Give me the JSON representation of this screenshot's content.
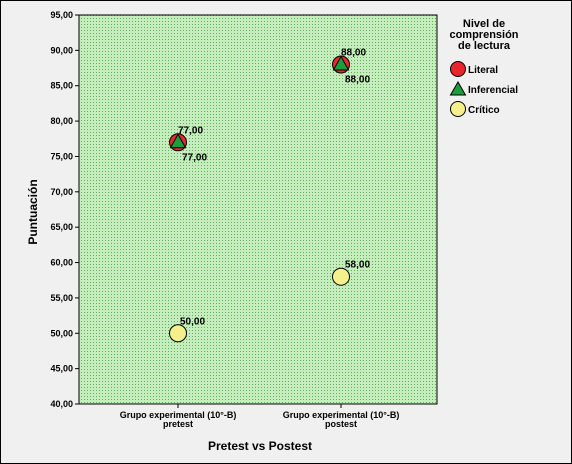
{
  "chart_data": {
    "type": "scatter",
    "xlabel": "Pretest vs Postest",
    "ylabel": "Puntuación",
    "ylim": [
      40,
      95
    ],
    "y_ticks": [
      "40,00",
      "45,00",
      "50,00",
      "55,00",
      "60,00",
      "65,00",
      "70,00",
      "75,00",
      "80,00",
      "85,00",
      "90,00",
      "95,00"
    ],
    "y_tick_values": [
      40,
      45,
      50,
      55,
      60,
      65,
      70,
      75,
      80,
      85,
      90,
      95
    ],
    "categories": [
      [
        "Grupo experimental (10°-B)",
        "pretest"
      ],
      [
        "Grupo experimental (10°-B)",
        "postest"
      ]
    ],
    "legend_title": [
      "Nivel de",
      "comprensión",
      "de lectura"
    ],
    "legend_position": "right",
    "plot_background": "#b9e6b0",
    "series": [
      {
        "name": "Literal",
        "marker": "circle",
        "color": "#e8262b",
        "values": [
          77,
          88
        ],
        "labels": [
          "77,00",
          "88,00"
        ]
      },
      {
        "name": "Inferencial",
        "marker": "triangle",
        "color": "#1a9f3b",
        "values": [
          77,
          88
        ],
        "labels": [
          "77,00",
          "88,00"
        ]
      },
      {
        "name": "Crítico",
        "marker": "circle",
        "color": "#f5f08a",
        "values": [
          50,
          58
        ],
        "labels": [
          "50,00",
          "58,00"
        ]
      }
    ]
  }
}
